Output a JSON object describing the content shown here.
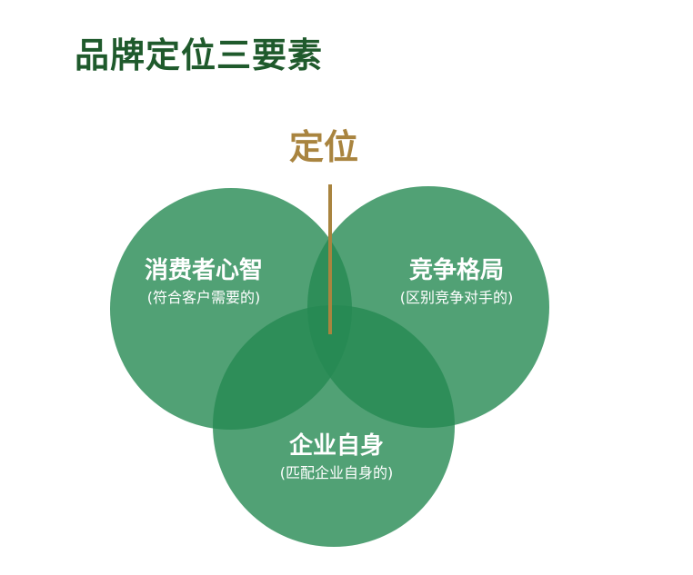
{
  "title": "品牌定位三要素",
  "center_label": "定位",
  "circles": [
    {
      "title": "消费者心智",
      "subtitle": "(符合客户需要的)"
    },
    {
      "title": "竞争格局",
      "subtitle": "(区别竞争对手的)"
    },
    {
      "title": "企业自身",
      "subtitle": "(匹配企业自身的)"
    }
  ],
  "colors": {
    "title": "#1f5a2c",
    "accent": "#a9843f",
    "circle": "#268952",
    "circle_text": "#ffffff"
  }
}
